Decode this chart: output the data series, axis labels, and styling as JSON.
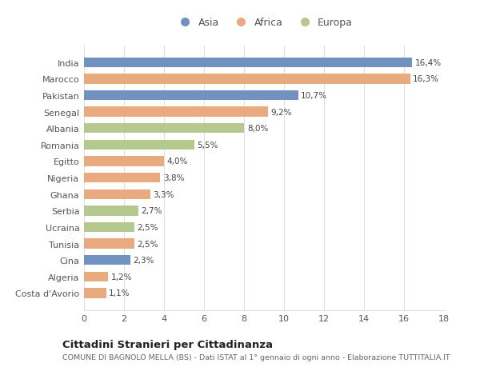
{
  "countries": [
    "India",
    "Marocco",
    "Pakistan",
    "Senegal",
    "Albania",
    "Romania",
    "Egitto",
    "Nigeria",
    "Ghana",
    "Serbia",
    "Ucraina",
    "Tunisia",
    "Cina",
    "Algeria",
    "Costa d'Avorio"
  ],
  "values": [
    16.4,
    16.3,
    10.7,
    9.2,
    8.0,
    5.5,
    4.0,
    3.8,
    3.3,
    2.7,
    2.5,
    2.5,
    2.3,
    1.2,
    1.1
  ],
  "labels": [
    "16,4%",
    "16,3%",
    "10,7%",
    "9,2%",
    "8,0%",
    "5,5%",
    "4,0%",
    "3,8%",
    "3,3%",
    "2,7%",
    "2,5%",
    "2,5%",
    "2,3%",
    "1,2%",
    "1,1%"
  ],
  "continents": [
    "Asia",
    "Africa",
    "Asia",
    "Africa",
    "Europa",
    "Europa",
    "Africa",
    "Africa",
    "Africa",
    "Europa",
    "Europa",
    "Africa",
    "Asia",
    "Africa",
    "Africa"
  ],
  "colors": {
    "Asia": "#7191c0",
    "Africa": "#e8aa7e",
    "Europa": "#b5c98e"
  },
  "title": "Cittadini Stranieri per Cittadinanza",
  "subtitle": "COMUNE DI BAGNOLO MELLA (BS) - Dati ISTAT al 1° gennaio di ogni anno - Elaborazione TUTTITALIA.IT",
  "xlim": [
    0,
    18
  ],
  "xticks": [
    0,
    2,
    4,
    6,
    8,
    10,
    12,
    14,
    16,
    18
  ],
  "background_color": "#ffffff",
  "bar_height": 0.6,
  "grid_color": "#e0e0e0",
  "text_color": "#555555",
  "label_color": "#444444",
  "title_fontsize": 9.5,
  "subtitle_fontsize": 6.8,
  "ytick_fontsize": 8.0,
  "xtick_fontsize": 8.0,
  "value_fontsize": 7.5,
  "legend_fontsize": 9.0
}
